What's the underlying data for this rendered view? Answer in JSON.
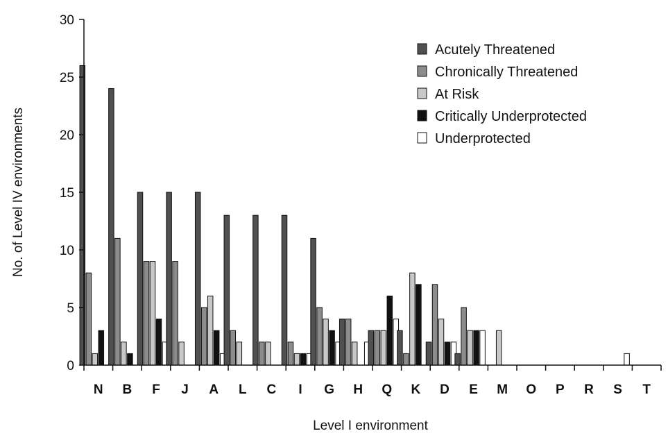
{
  "chart_data": {
    "type": "bar",
    "title": "",
    "xlabel": "Level I environment",
    "ylabel": "No. of Level IV environments",
    "ylim": [
      0,
      30
    ],
    "yticks": [
      0,
      5,
      10,
      15,
      20,
      25,
      30
    ],
    "grid": false,
    "legend_position": "top-right",
    "categories": [
      "N",
      "B",
      "F",
      "J",
      "A",
      "L",
      "C",
      "I",
      "G",
      "H",
      "Q",
      "K",
      "D",
      "E",
      "M",
      "O",
      "P",
      "R",
      "S",
      "T"
    ],
    "series": [
      {
        "name": "Acutely Threatened",
        "color": "#505050",
        "values": [
          26,
          24,
          15,
          15,
          15,
          13,
          13,
          13,
          11,
          4,
          3,
          3,
          2,
          1,
          0,
          0,
          0,
          0,
          0,
          0
        ]
      },
      {
        "name": "Chronically Threatened",
        "color": "#8c8c8c",
        "values": [
          8,
          11,
          9,
          9,
          5,
          3,
          2,
          2,
          5,
          4,
          3,
          1,
          7,
          5,
          0,
          0,
          0,
          0,
          0,
          0
        ]
      },
      {
        "name": "At Risk",
        "color": "#c8c8c8",
        "values": [
          1,
          2,
          9,
          2,
          6,
          2,
          2,
          1,
          4,
          2,
          3,
          8,
          4,
          3,
          3,
          0,
          0,
          0,
          0,
          0
        ]
      },
      {
        "name": "Critically Underprotected",
        "color": "#111111",
        "values": [
          3,
          1,
          4,
          0,
          3,
          0,
          0,
          1,
          3,
          0,
          6,
          7,
          2,
          3,
          0,
          0,
          0,
          0,
          0,
          0
        ]
      },
      {
        "name": "Underprotected",
        "color": "#ffffff",
        "values": [
          0,
          0,
          2,
          0,
          1,
          0,
          0,
          1,
          2,
          2,
          4,
          0,
          2,
          3,
          0,
          0,
          0,
          0,
          1,
          0
        ]
      }
    ]
  }
}
